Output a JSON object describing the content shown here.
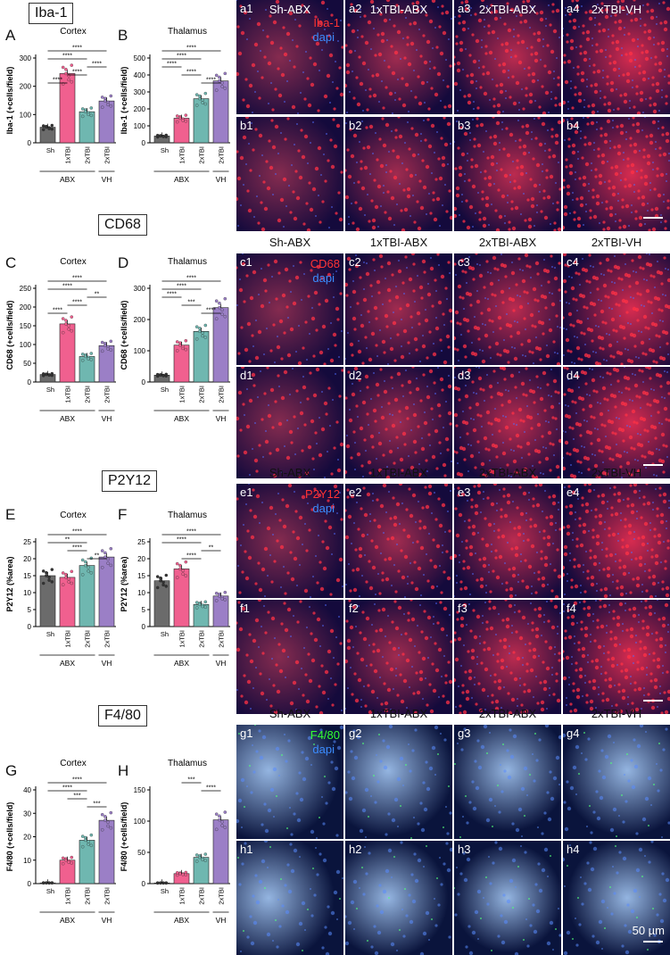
{
  "sections": [
    {
      "id": "iba1",
      "title": "Iba-1",
      "top": 3,
      "chart_letters": [
        "A",
        "B"
      ],
      "tile_row_labels": [
        [
          "a1",
          "a2",
          "a3",
          "a4"
        ],
        [
          "b1",
          "b2",
          "b3",
          "b4"
        ]
      ],
      "stain": "Iba-1",
      "stain_color": "#ff3333"
    },
    {
      "id": "cd68",
      "title": "CD68",
      "top": 240,
      "chart_letters": [
        "C",
        "D"
      ],
      "tile_row_labels": [
        [
          "c1",
          "c2",
          "c3",
          "c4"
        ],
        [
          "d1",
          "d2",
          "d3",
          "d4"
        ]
      ],
      "stain": "CD68",
      "stain_color": "#ff3333"
    },
    {
      "id": "p2y12",
      "title": "P2Y12",
      "top": 527,
      "chart_letters": [
        "E",
        "F"
      ],
      "tile_row_labels": [
        [
          "e1",
          "e2",
          "e3",
          "e4"
        ],
        [
          "f1",
          "f2",
          "f3",
          "f4"
        ]
      ],
      "stain": "P2Y12",
      "stain_color": "#ff3333"
    },
    {
      "id": "f480",
      "title": "F4/80",
      "top": 790,
      "chart_letters": [
        "G",
        "H"
      ],
      "tile_row_labels": [
        [
          "g1",
          "g2",
          "g3",
          "g4"
        ],
        [
          "h1",
          "h2",
          "h3",
          "h4"
        ]
      ],
      "stain": "F4/80",
      "stain_color": "#33ff33"
    }
  ],
  "column_headers": [
    "Sh-ABX",
    "1xTBI-ABX",
    "2xTBI-ABX",
    "2xTBI-VH"
  ],
  "dapi_label": "dapi",
  "scale_label": "50 µm",
  "group_labels": {
    "abx": "ABX",
    "vh": "VH"
  },
  "bar_colors": [
    "#6b6b6b",
    "#f0608f",
    "#6fb7b0",
    "#9b7fc6"
  ],
  "chart_data": [
    {
      "type": "bar",
      "panel": "A",
      "title": "Cortex",
      "ylabel": "Iba-1 (+cells/field)",
      "categories": [
        "Sh",
        "1xTBI",
        "2xTBI",
        "2xTBI"
      ],
      "values": [
        55,
        245,
        110,
        148
      ],
      "ylim": [
        0,
        300
      ],
      "yticks": [
        0,
        100,
        200,
        300
      ],
      "sig": [
        {
          "a": 0,
          "b": 3,
          "label": "****"
        },
        {
          "a": 0,
          "b": 2,
          "label": "****"
        },
        {
          "a": 0,
          "b": 1,
          "label": "****"
        },
        {
          "a": 1,
          "b": 2,
          "label": "****"
        },
        {
          "a": 2,
          "b": 3,
          "label": "****"
        }
      ]
    },
    {
      "type": "bar",
      "panel": "B",
      "title": "Thalamus",
      "ylabel": "Iba-1 (+cells/field)",
      "categories": [
        "Sh",
        "1xTBI",
        "2xTBI",
        "2xTBI"
      ],
      "values": [
        40,
        145,
        260,
        365
      ],
      "ylim": [
        0,
        500
      ],
      "yticks": [
        0,
        100,
        200,
        300,
        400,
        500
      ],
      "sig": [
        {
          "a": 0,
          "b": 3,
          "label": "****"
        },
        {
          "a": 0,
          "b": 2,
          "label": "****"
        },
        {
          "a": 2,
          "b": 3,
          "label": "****"
        },
        {
          "a": 1,
          "b": 2,
          "label": "****"
        },
        {
          "a": 0,
          "b": 1,
          "label": "****"
        }
      ]
    },
    {
      "type": "bar",
      "panel": "C",
      "title": "Cortex",
      "ylabel": "CD68 (+cells/field)",
      "categories": [
        "Sh",
        "1xTBI",
        "2xTBI",
        "2xTBI"
      ],
      "values": [
        20,
        155,
        68,
        97
      ],
      "ylim": [
        0,
        250
      ],
      "yticks": [
        0,
        50,
        100,
        150,
        200,
        250
      ],
      "sig": [
        {
          "a": 0,
          "b": 3,
          "label": "****"
        },
        {
          "a": 0,
          "b": 2,
          "label": "****"
        },
        {
          "a": 0,
          "b": 1,
          "label": "****"
        },
        {
          "a": 1,
          "b": 2,
          "label": "****"
        },
        {
          "a": 2,
          "b": 3,
          "label": "**"
        }
      ]
    },
    {
      "type": "bar",
      "panel": "D",
      "title": "Thalamus",
      "ylabel": "CD68 (+cells/field)",
      "categories": [
        "Sh",
        "1xTBI",
        "2xTBI",
        "2xTBI"
      ],
      "values": [
        22,
        118,
        162,
        238
      ],
      "ylim": [
        0,
        300
      ],
      "yticks": [
        0,
        100,
        200,
        300
      ],
      "sig": [
        {
          "a": 0,
          "b": 3,
          "label": "****"
        },
        {
          "a": 0,
          "b": 2,
          "label": "****"
        },
        {
          "a": 2,
          "b": 3,
          "label": "****"
        },
        {
          "a": 1,
          "b": 2,
          "label": "***"
        },
        {
          "a": 0,
          "b": 1,
          "label": "****"
        }
      ]
    },
    {
      "type": "bar",
      "panel": "E",
      "title": "Cortex",
      "ylabel": "P2Y12 (%area)",
      "categories": [
        "Sh",
        "1xTBI",
        "2xTBI",
        "2xTBI"
      ],
      "values": [
        15,
        14.5,
        18,
        20.5
      ],
      "ylim": [
        0,
        25
      ],
      "yticks": [
        0,
        5,
        10,
        15,
        20,
        25
      ],
      "sig": [
        {
          "a": 0,
          "b": 3,
          "label": "****"
        },
        {
          "a": 0,
          "b": 2,
          "label": "**"
        },
        {
          "a": 2,
          "b": 3,
          "label": "**"
        },
        {
          "a": 1,
          "b": 2,
          "label": "****"
        }
      ]
    },
    {
      "type": "bar",
      "panel": "F",
      "title": "Thalamus",
      "ylabel": "P2Y12 (%area)",
      "categories": [
        "Sh",
        "1xTBI",
        "2xTBI",
        "2xTBI"
      ],
      "values": [
        13.5,
        17,
        6.5,
        9
      ],
      "ylim": [
        0,
        25
      ],
      "yticks": [
        0,
        5,
        10,
        15,
        20,
        25
      ],
      "sig": [
        {
          "a": 0,
          "b": 3,
          "label": "****"
        },
        {
          "a": 0,
          "b": 2,
          "label": "****"
        },
        {
          "a": 1,
          "b": 2,
          "label": "****"
        },
        {
          "a": 2,
          "b": 3,
          "label": "**"
        }
      ]
    },
    {
      "type": "bar",
      "panel": "G",
      "title": "Cortex",
      "ylabel": "F4/80 (+cells/field)",
      "categories": [
        "Sh",
        "1xTBI",
        "2xTBI",
        "2xTBI"
      ],
      "values": [
        0.3,
        10,
        18.5,
        27
      ],
      "ylim": [
        0,
        40
      ],
      "yticks": [
        0,
        10,
        20,
        30,
        40
      ],
      "sig": [
        {
          "a": 0,
          "b": 3,
          "label": "****"
        },
        {
          "a": 0,
          "b": 2,
          "label": "****"
        },
        {
          "a": 2,
          "b": 3,
          "label": "***"
        },
        {
          "a": 1,
          "b": 2,
          "label": "***"
        }
      ]
    },
    {
      "type": "bar",
      "panel": "H",
      "title": "Thalamus",
      "ylabel": "F4/80 (+cells/field)",
      "categories": [
        "Sh",
        "1xTBI",
        "2xTBI",
        "2xTBI"
      ],
      "values": [
        1,
        16,
        42,
        102
      ],
      "ylim": [
        0,
        150
      ],
      "yticks": [
        0,
        50,
        100,
        150
      ],
      "sig": [
        {
          "a": 2,
          "b": 3,
          "label": "****"
        },
        {
          "a": 1,
          "b": 2,
          "label": "***"
        }
      ]
    }
  ]
}
